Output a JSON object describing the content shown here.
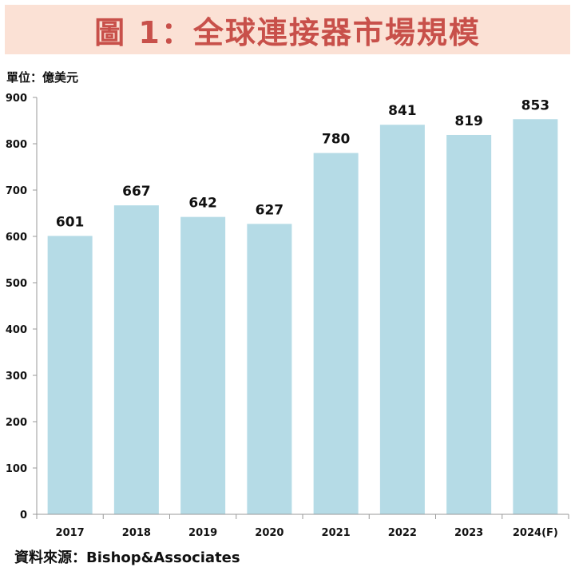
{
  "header": {
    "title": "圖 1：全球連接器市場規模"
  },
  "unit_label": "單位：億美元",
  "source_label": "資料來源：Bishop&Associates",
  "chart_data": {
    "type": "bar",
    "title": "圖 1：全球連接器市場規模",
    "categories": [
      "2017",
      "2018",
      "2019",
      "2020",
      "2021",
      "2022",
      "2023",
      "2024(F)"
    ],
    "values": [
      601,
      667,
      642,
      627,
      780,
      841,
      819,
      853
    ],
    "data_labels": [
      "601",
      "667",
      "642",
      "627",
      "780",
      "841",
      "819",
      "853"
    ],
    "yticks": [
      "0",
      "100",
      "200",
      "300",
      "400",
      "500",
      "600",
      "700",
      "800",
      "900"
    ],
    "ylim": [
      0,
      900
    ],
    "xlabel": "",
    "ylabel": "單位：億美元",
    "grid": false,
    "legend": "none",
    "colors": {
      "bar": "#b5dbe6",
      "axis": "#999999",
      "title": "#c8504a",
      "banner": "#fbe1d5"
    }
  }
}
